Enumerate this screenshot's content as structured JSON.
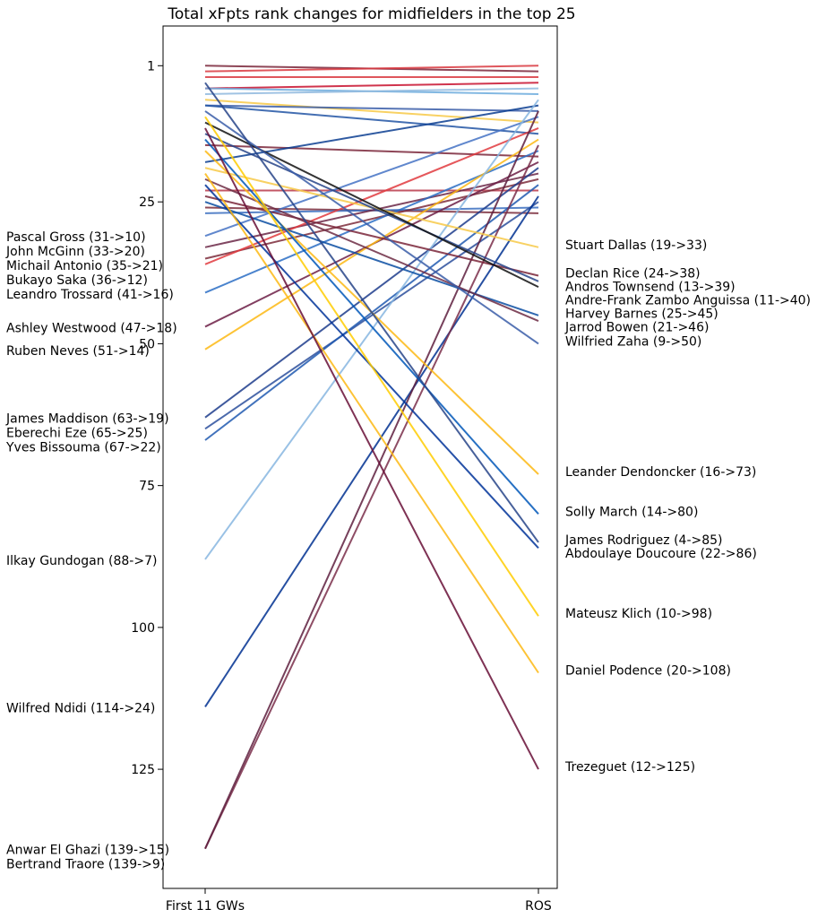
{
  "chart_data": {
    "type": "line",
    "title": "Total xFpts rank changes for midfielders in the top 25",
    "x_categories": [
      "First 11 GWs",
      "ROS"
    ],
    "y_axis": {
      "inverted": true,
      "range": [
        -6,
        146
      ],
      "ticks": [
        1,
        25,
        50,
        75,
        100,
        125
      ]
    },
    "grid": false,
    "labelled_players": [
      {
        "label": "Pascal Gross (31->10)",
        "from": 31,
        "to": 10,
        "color": "#4472c4"
      },
      {
        "label": "John McGinn (33->20)",
        "from": 33,
        "to": 20,
        "color": "#6b2747"
      },
      {
        "label": "Michail Antonio (35->21)",
        "from": 35,
        "to": 21,
        "color": "#7c2c3b"
      },
      {
        "label": "Bukayo Saka (36->12)",
        "from": 36,
        "to": 12,
        "color": "#e03a3e"
      },
      {
        "label": "Leandro Trossard (41->16)",
        "from": 41,
        "to": 16,
        "color": "#2a6dc4"
      },
      {
        "label": "Ashley Westwood (47->18)",
        "from": 47,
        "to": 18,
        "color": "#6c1d45"
      },
      {
        "label": "Ruben Neves (51->14)",
        "from": 51,
        "to": 14,
        "color": "#fdb913"
      },
      {
        "label": "James Maddison (63->19)",
        "from": 63,
        "to": 19,
        "color": "#1d3c8c"
      },
      {
        "label": "Eberechi Eze (65->25)",
        "from": 65,
        "to": 25,
        "color": "#2b4f9c"
      },
      {
        "label": "Yves Bissouma (67->22)",
        "from": 67,
        "to": 22,
        "color": "#2059b0"
      },
      {
        "label": "Ilkay Gundogan (88->7)",
        "from": 88,
        "to": 7,
        "color": "#87b6e0"
      },
      {
        "label": "Wilfred Ndidi (114->24)",
        "from": 114,
        "to": 24,
        "color": "#003090"
      },
      {
        "label": "Anwar El Ghazi (139->15)",
        "from": 139,
        "to": 15,
        "color": "#7a2e4a"
      },
      {
        "label": "Bertrand Traore (139->9)",
        "from": 139,
        "to": 9,
        "color": "#5e1e3e"
      },
      {
        "label": "Stuart Dallas (19->33)",
        "from": 19,
        "to": 33,
        "color": "#f7c948"
      },
      {
        "label": "Declan Rice (24->38)",
        "from": 24,
        "to": 38,
        "color": "#7a263a"
      },
      {
        "label": "Andros Townsend (13->39)",
        "from": 13,
        "to": 39,
        "color": "#274488"
      },
      {
        "label": "Andre-Frank Zambo Anguissa (11->40)",
        "from": 11,
        "to": 40,
        "color": "#111111"
      },
      {
        "label": "Harvey Barnes (25->45)",
        "from": 25,
        "to": 45,
        "color": "#0b4ea2"
      },
      {
        "label": "Jarrod Bowen (21->46)",
        "from": 21,
        "to": 46,
        "color": "#6d2c44"
      },
      {
        "label": "Wilfried Zaha (9->50)",
        "from": 9,
        "to": 50,
        "color": "#3a5da8"
      },
      {
        "label": "Leander Dendoncker (16->73)",
        "from": 16,
        "to": 73,
        "color": "#fdb913"
      },
      {
        "label": "Solly March (14->80)",
        "from": 14,
        "to": 80,
        "color": "#0057b8"
      },
      {
        "label": "James Rodriguez (4->85)",
        "from": 4,
        "to": 85,
        "color": "#274488"
      },
      {
        "label": "Abdoulaye Doucoure (22->86)",
        "from": 22,
        "to": 86,
        "color": "#003399"
      },
      {
        "label": "Mateusz Klich (10->98)",
        "from": 10,
        "to": 98,
        "color": "#ffcd00"
      },
      {
        "label": "Daniel Podence (20->108)",
        "from": 20,
        "to": 108,
        "color": "#fdb913"
      },
      {
        "label": "Trezeguet (12->125)",
        "from": 12,
        "to": 125,
        "color": "#670e36"
      }
    ],
    "unlabelled_lines": [
      {
        "from": 1,
        "to": 2,
        "color": "#7a263a"
      },
      {
        "from": 2,
        "to": 1,
        "color": "#d9383f"
      },
      {
        "from": 3,
        "to": 3,
        "color": "#d9383f"
      },
      {
        "from": 5,
        "to": 4,
        "color": "#c8102e"
      },
      {
        "from": 5,
        "to": 6,
        "color": "#6cabdd"
      },
      {
        "from": 6,
        "to": 5,
        "color": "#8fb8de"
      },
      {
        "from": 7,
        "to": 11,
        "color": "#f7c948"
      },
      {
        "from": 8,
        "to": 9,
        "color": "#3a5da8"
      },
      {
        "from": 8,
        "to": 13,
        "color": "#2255a4"
      },
      {
        "from": 15,
        "to": 17,
        "color": "#7a263a"
      },
      {
        "from": 18,
        "to": 8,
        "color": "#0b3d91"
      },
      {
        "from": 23,
        "to": 23,
        "color": "#b8384a"
      },
      {
        "from": 26,
        "to": 27,
        "color": "#7a2c3b"
      },
      {
        "from": 27,
        "to": 26,
        "color": "#3b6fc0"
      }
    ]
  }
}
